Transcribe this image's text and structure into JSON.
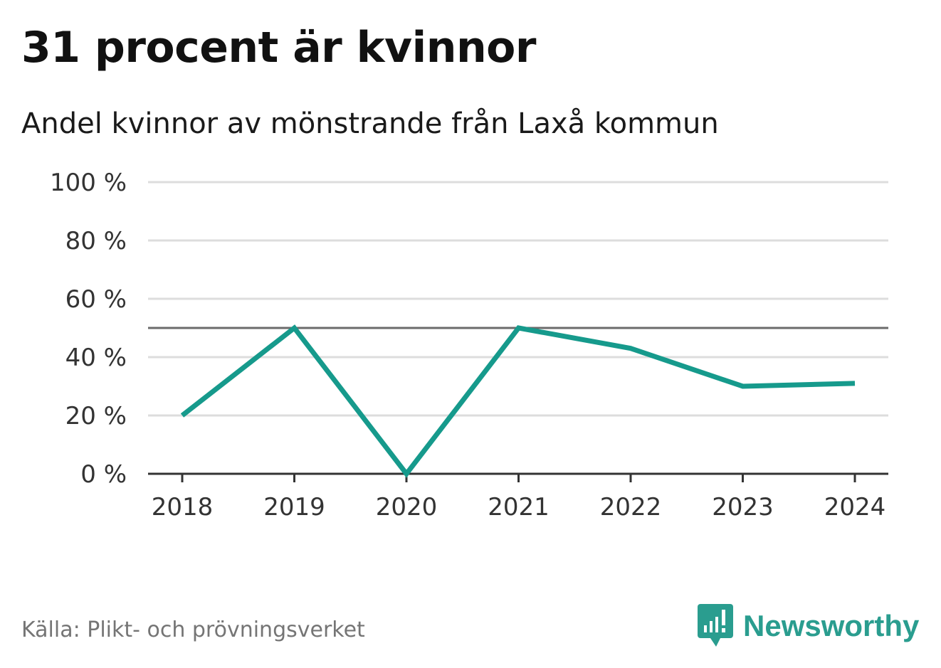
{
  "title": "31 procent är kvinnor",
  "subtitle": "Andel kvinnor av mönstrande från Laxå kommun",
  "source": "Källa: Plikt- och prövningsverket",
  "brand": {
    "name": "Newsworthy",
    "icon": "newsworthy-logo-icon",
    "color": "#2a9d8f"
  },
  "colors": {
    "line": "#169a8c",
    "reference_line": "#6b6b6b",
    "grid": "#dddddd",
    "axis": "#333333"
  },
  "chart_data": {
    "type": "line",
    "title": "31 procent är kvinnor",
    "subtitle": "Andel kvinnor av mönstrande från Laxå kommun",
    "xlabel": "",
    "ylabel": "",
    "categories": [
      "2018",
      "2019",
      "2020",
      "2021",
      "2022",
      "2023",
      "2024"
    ],
    "series": [
      {
        "values": [
          20,
          50,
          0,
          50,
          43,
          30,
          31
        ]
      }
    ],
    "ylim": [
      0,
      100
    ],
    "yticks": [
      0,
      20,
      40,
      60,
      80,
      100
    ],
    "ytick_labels": [
      "0 %",
      "20 %",
      "40 %",
      "60 %",
      "80 %",
      "100 %"
    ],
    "reference_line": 50,
    "grid": true,
    "legend": "none"
  }
}
